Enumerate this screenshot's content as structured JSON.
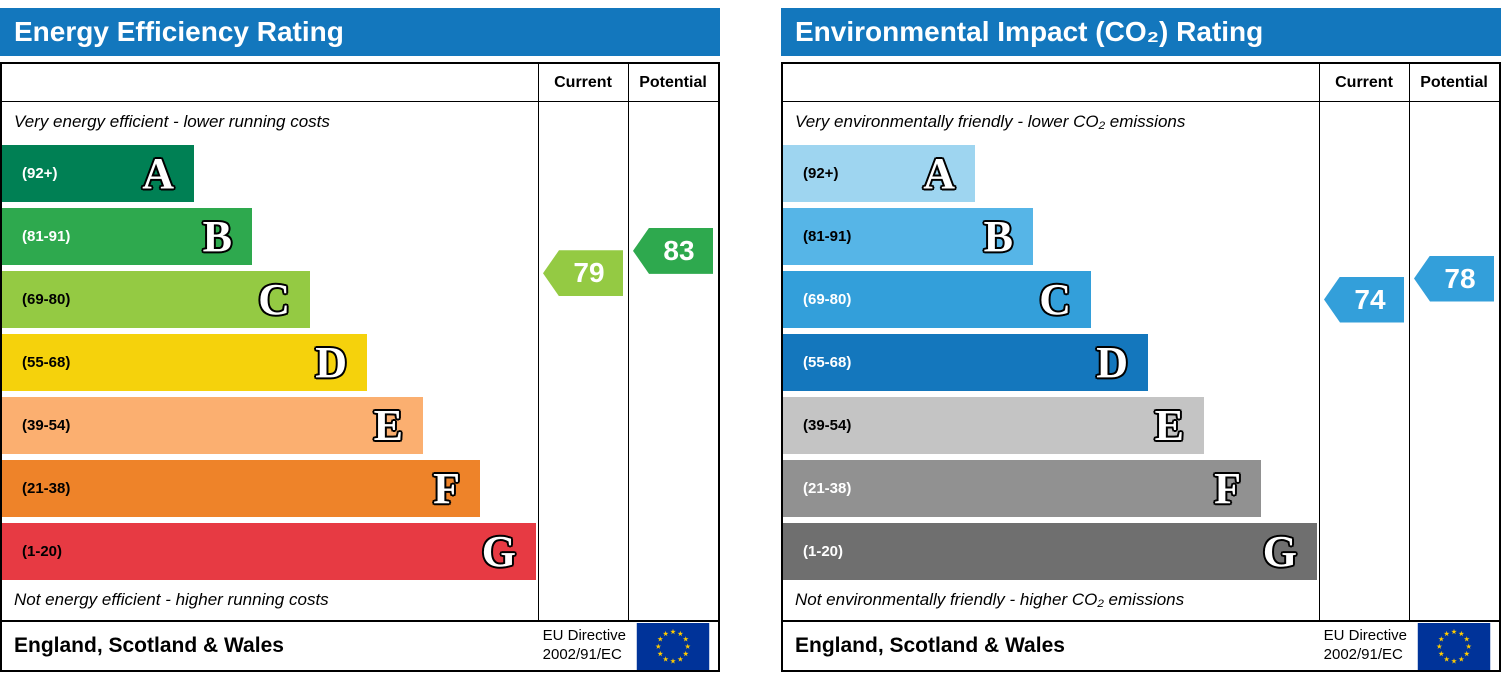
{
  "chart_data": [
    {
      "type": "bar",
      "variant": "epc-rating",
      "title": "Energy Efficiency Rating",
      "title_bar_color": "#1377bd",
      "columns": [
        "Current",
        "Potential"
      ],
      "top_caption": "Very energy efficient - lower running costs",
      "bottom_caption": "Not energy efficient - higher running costs",
      "scale": [
        1,
        100
      ],
      "bands": [
        {
          "letter": "A",
          "range_label": "(92+)",
          "range": [
            92,
            100
          ],
          "color": "#008054",
          "label_color": "#ffffff"
        },
        {
          "letter": "B",
          "range_label": "(81-91)",
          "range": [
            81,
            91
          ],
          "color": "#2ea94e",
          "label_color": "#ffffff"
        },
        {
          "letter": "C",
          "range_label": "(69-80)",
          "range": [
            69,
            80
          ],
          "color": "#94ca43",
          "label_color": "#000000"
        },
        {
          "letter": "D",
          "range_label": "(55-68)",
          "range": [
            55,
            68
          ],
          "color": "#f5d20c",
          "label_color": "#000000"
        },
        {
          "letter": "E",
          "range_label": "(39-54)",
          "range": [
            39,
            54
          ],
          "color": "#fbaf70",
          "label_color": "#000000"
        },
        {
          "letter": "F",
          "range_label": "(21-38)",
          "range": [
            21,
            38
          ],
          "color": "#ee8329",
          "label_color": "#000000"
        },
        {
          "letter": "G",
          "range_label": "(1-20)",
          "range": [
            1,
            20
          ],
          "color": "#e73a43",
          "label_color": "#000000"
        }
      ],
      "current": {
        "value": 79,
        "color": "#94ca43"
      },
      "potential": {
        "value": 83,
        "color": "#2ea94e"
      },
      "footer": {
        "region": "England, Scotland & Wales",
        "directive": [
          "EU Directive",
          "2002/91/EC"
        ]
      }
    },
    {
      "type": "bar",
      "variant": "epc-rating",
      "title": "Environmental Impact (CO₂) Rating",
      "title_bar_color": "#1377bd",
      "columns": [
        "Current",
        "Potential"
      ],
      "top_caption": "Very environmentally friendly - lower CO₂ emissions",
      "bottom_caption": "Not environmentally friendly - higher CO₂ emissions",
      "scale": [
        1,
        100
      ],
      "bands": [
        {
          "letter": "A",
          "range_label": "(92+)",
          "range": [
            92,
            100
          ],
          "color": "#9ed5f0",
          "label_color": "#000000"
        },
        {
          "letter": "B",
          "range_label": "(81-91)",
          "range": [
            81,
            91
          ],
          "color": "#56b5e7",
          "label_color": "#000000"
        },
        {
          "letter": "C",
          "range_label": "(69-80)",
          "range": [
            69,
            80
          ],
          "color": "#339fda",
          "label_color": "#ffffff"
        },
        {
          "letter": "D",
          "range_label": "(55-68)",
          "range": [
            55,
            68
          ],
          "color": "#1477bd",
          "label_color": "#ffffff"
        },
        {
          "letter": "E",
          "range_label": "(39-54)",
          "range": [
            39,
            54
          ],
          "color": "#c4c4c4",
          "label_color": "#000000"
        },
        {
          "letter": "F",
          "range_label": "(21-38)",
          "range": [
            21,
            38
          ],
          "color": "#919191",
          "label_color": "#ffffff"
        },
        {
          "letter": "G",
          "range_label": "(1-20)",
          "range": [
            1,
            20
          ],
          "color": "#6f6f6f",
          "label_color": "#ffffff"
        }
      ],
      "current": {
        "value": 74,
        "color": "#339fda"
      },
      "potential": {
        "value": 78,
        "color": "#339fda"
      },
      "footer": {
        "region": "England, Scotland & Wales",
        "directive": [
          "EU Directive",
          "2002/91/EC"
        ]
      }
    }
  ]
}
